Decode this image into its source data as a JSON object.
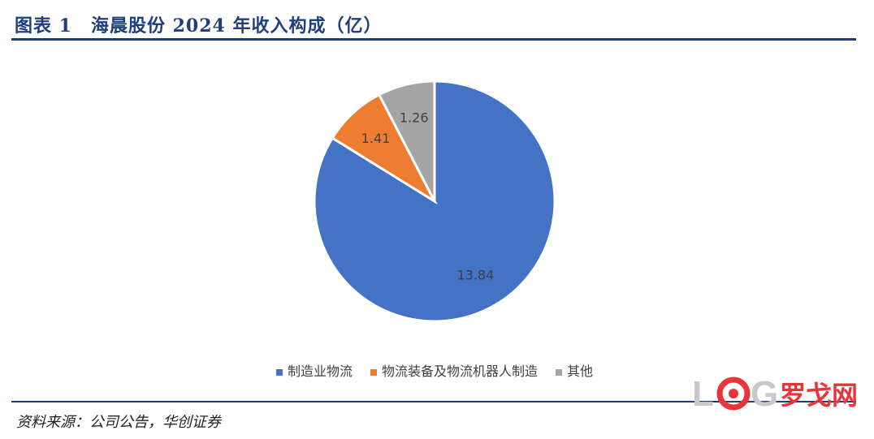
{
  "figure": {
    "title": "图表 1　海晨股份 2024 年收入构成（亿）",
    "source": "资料来源：公司公告，华创证券"
  },
  "watermark": {
    "text": "罗戈网",
    "letters": "L G",
    "colors": {
      "letters": "#c8c8c8",
      "ring": "#e8353a",
      "text": "#e8353a"
    }
  },
  "chart_data": {
    "type": "pie",
    "categories": [
      "制造业物流",
      "物流装备及物流机器人制造",
      "其他"
    ],
    "values": [
      13.84,
      1.41,
      1.26
    ],
    "data_labels": [
      "13.84",
      "1.41",
      "1.26"
    ],
    "colors": [
      "#4472c4",
      "#ed7d31",
      "#a5a5a5"
    ],
    "start_angle": 0,
    "direction": "clockwise",
    "legend_position": "bottom"
  }
}
